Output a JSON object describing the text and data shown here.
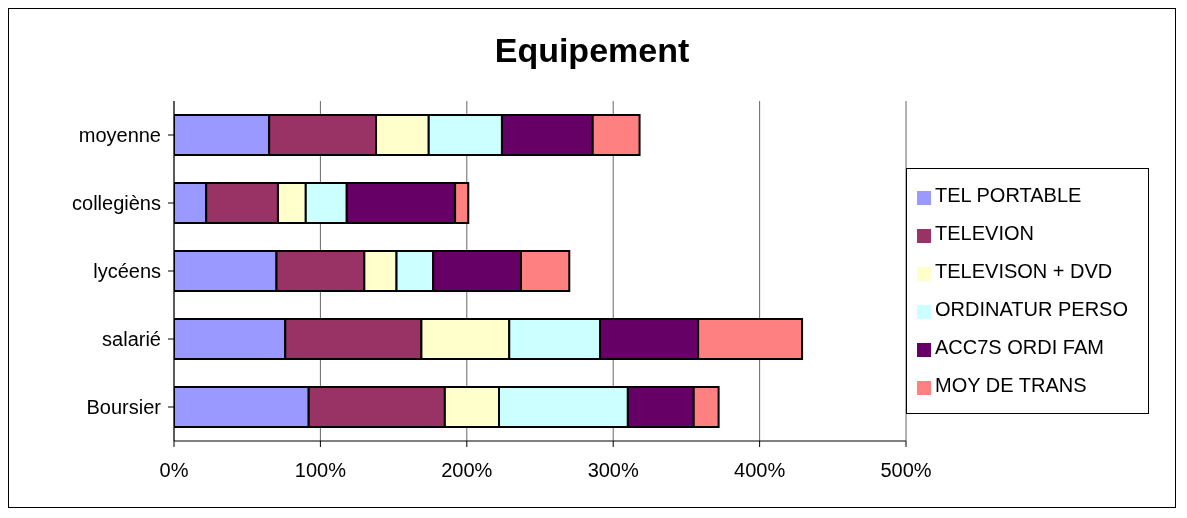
{
  "chart_data": {
    "type": "bar",
    "orientation": "horizontal",
    "stacked": true,
    "title": "Equipement",
    "categories": [
      "moyenne",
      "collegièns",
      "lycéens",
      "salarié",
      "Boursier"
    ],
    "series": [
      {
        "name": "TEL PORTABLE",
        "color": "#9999ff",
        "values": [
          65,
          22,
          70,
          76,
          92
        ]
      },
      {
        "name": "TELEVION",
        "color": "#993366",
        "values": [
          73,
          49,
          60,
          93,
          93
        ]
      },
      {
        "name": "TELEVISON + DVD",
        "color": "#ffffcc",
        "values": [
          36,
          19,
          22,
          60,
          37
        ]
      },
      {
        "name": "ORDINATUR PERSO",
        "color": "#ccffff",
        "values": [
          50,
          28,
          25,
          62,
          88
        ]
      },
      {
        "name": "ACC7S ORDI FAM",
        "color": "#660066",
        "values": [
          62,
          74,
          60,
          67,
          45
        ]
      },
      {
        "name": "MOY DE TRANS",
        "color": "#ff8080",
        "values": [
          32,
          9,
          33,
          71,
          17
        ]
      }
    ],
    "xlim": [
      0,
      500
    ],
    "xticks": [
      {
        "value": 0,
        "label": "0%"
      },
      {
        "value": 100,
        "label": "100%"
      },
      {
        "value": 200,
        "label": "200%"
      },
      {
        "value": 300,
        "label": "300%"
      },
      {
        "value": 400,
        "label": "400%"
      },
      {
        "value": 500,
        "label": "500%"
      }
    ],
    "grid": "x",
    "legend": "right"
  }
}
